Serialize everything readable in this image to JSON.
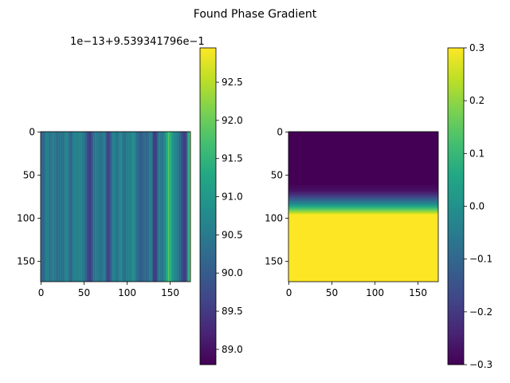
{
  "figure": {
    "title": "Found Phase Gradient"
  },
  "chart_data": [
    {
      "type": "heatmap",
      "title": "",
      "xlabel": "",
      "ylabel": "",
      "grid": false,
      "xlim": [
        0,
        174
      ],
      "ylim": [
        174,
        0
      ],
      "x_ticks": [
        0,
        50,
        100,
        150
      ],
      "y_ticks": [
        0,
        50,
        100,
        150
      ],
      "colormap": "viridis",
      "pattern": "vertical stripes: value varies across columns, nearly constant down rows",
      "column_profile_samples": {
        "x": [
          0,
          3,
          6,
          10,
          14,
          19,
          22,
          26,
          30,
          34,
          38,
          42,
          46,
          50,
          54,
          57,
          62,
          66,
          70,
          74,
          77,
          80,
          84,
          88,
          92,
          96,
          100,
          104,
          108,
          112,
          116,
          120,
          124,
          128,
          131,
          134,
          137,
          140,
          144,
          148,
          152,
          156,
          160,
          164,
          168,
          172
        ],
        "value_offset": [
          90.4,
          90.2,
          90.6,
          90.3,
          90.8,
          90.1,
          90.5,
          90.4,
          90.7,
          90.2,
          90.6,
          90.5,
          90.9,
          90.3,
          89.8,
          89.6,
          90.4,
          90.6,
          90.3,
          90.5,
          89.7,
          89.9,
          90.6,
          90.4,
          90.8,
          90.2,
          90.7,
          90.5,
          90.9,
          90.3,
          89.8,
          90.4,
          90.2,
          90.6,
          89.6,
          89.7,
          90.5,
          90.4,
          90.9,
          91.6,
          91.2,
          90.7,
          90.3,
          89.9,
          89.4,
          91.8
        ]
      },
      "colorbar": {
        "ticks": [
          89.0,
          89.5,
          90.0,
          90.5,
          91.0,
          91.5,
          92.0,
          92.5
        ],
        "tick_labels": [
          "89.0",
          "89.5",
          "90.0",
          "90.5",
          "91.0",
          "91.5",
          "92.0",
          "92.5"
        ],
        "range": [
          88.8,
          92.95
        ],
        "offset_label": "1e−13+9.539341796e−1"
      }
    },
    {
      "type": "heatmap",
      "title": "",
      "xlabel": "",
      "ylabel": "",
      "grid": false,
      "xlim": [
        0,
        174
      ],
      "ylim": [
        174,
        0
      ],
      "x_ticks": [
        0,
        50,
        100,
        150
      ],
      "y_ticks": [
        0,
        50,
        100,
        150
      ],
      "colormap": "viridis",
      "pattern": "horizontal bands: value constant across columns, rises with row index",
      "row_profile": {
        "row": [
          0,
          60,
          68,
          74,
          79,
          84,
          88,
          92,
          96,
          174
        ],
        "value": [
          -0.3,
          -0.3,
          -0.27,
          -0.2,
          -0.1,
          0.0,
          0.1,
          0.2,
          0.3,
          0.3
        ]
      },
      "colorbar": {
        "ticks": [
          -0.3,
          -0.2,
          -0.1,
          0.0,
          0.1,
          0.2,
          0.3
        ],
        "tick_labels": [
          "−0.3",
          "−0.2",
          "−0.1",
          "0.0",
          "0.1",
          "0.2",
          "0.3"
        ],
        "range": [
          -0.3,
          0.3
        ]
      }
    }
  ]
}
